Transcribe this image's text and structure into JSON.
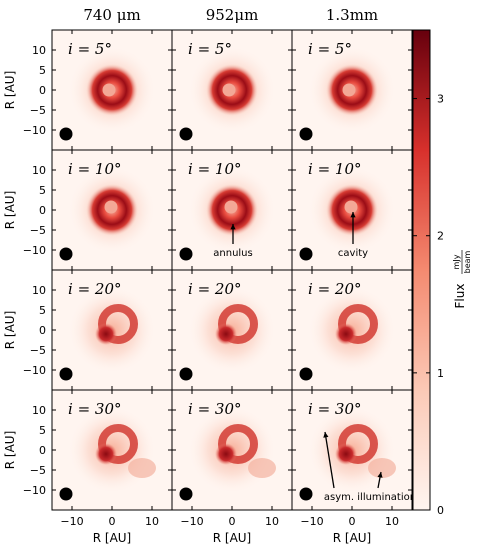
{
  "figure": {
    "column_titles": [
      "740 μm",
      "952μm",
      "1.3mm"
    ],
    "row_inclinations": [
      "i = 5°",
      "i = 10°",
      "i = 20°",
      "i = 30°"
    ],
    "y_axis_label": "R [AU]",
    "x_axis_label": "R [AU]",
    "x_ticks": [
      "−10",
      "0",
      "10"
    ],
    "y_ticks": [
      "10",
      "5",
      "0",
      "−5",
      "−10"
    ],
    "colorbar_label": "Flux",
    "colorbar_unit_num": "mJy",
    "colorbar_unit_den": "beam",
    "colorbar_ticks": [
      "0",
      "1",
      "2",
      "3"
    ],
    "annotations": {
      "annulus": "annulus",
      "cavity": "cavity",
      "asym": "asym. illumination"
    },
    "colors": {
      "low": "#fff5f0",
      "mid": "#f0705a",
      "high": "#8b0a12"
    }
  },
  "chart_data": {
    "type": "heatmap",
    "panels": [
      {
        "row": 0,
        "col": 0,
        "wavelength": "740 μm",
        "inclination_deg": 5
      },
      {
        "row": 0,
        "col": 1,
        "wavelength": "952μm",
        "inclination_deg": 5
      },
      {
        "row": 0,
        "col": 2,
        "wavelength": "1.3mm",
        "inclination_deg": 5
      },
      {
        "row": 1,
        "col": 0,
        "wavelength": "740 μm",
        "inclination_deg": 10
      },
      {
        "row": 1,
        "col": 1,
        "wavelength": "952μm",
        "inclination_deg": 10
      },
      {
        "row": 1,
        "col": 2,
        "wavelength": "1.3mm",
        "inclination_deg": 10
      },
      {
        "row": 2,
        "col": 0,
        "wavelength": "740 μm",
        "inclination_deg": 20
      },
      {
        "row": 2,
        "col": 1,
        "wavelength": "952μm",
        "inclination_deg": 20
      },
      {
        "row": 2,
        "col": 2,
        "wavelength": "1.3mm",
        "inclination_deg": 20
      },
      {
        "row": 3,
        "col": 0,
        "wavelength": "740 μm",
        "inclination_deg": 30
      },
      {
        "row": 3,
        "col": 1,
        "wavelength": "952μm",
        "inclination_deg": 30
      },
      {
        "row": 3,
        "col": 2,
        "wavelength": "1.3mm",
        "inclination_deg": 30
      }
    ],
    "xlim": [
      -15,
      15
    ],
    "ylim": [
      -15,
      15
    ],
    "colorbar_range": [
      0,
      3.5
    ]
  }
}
